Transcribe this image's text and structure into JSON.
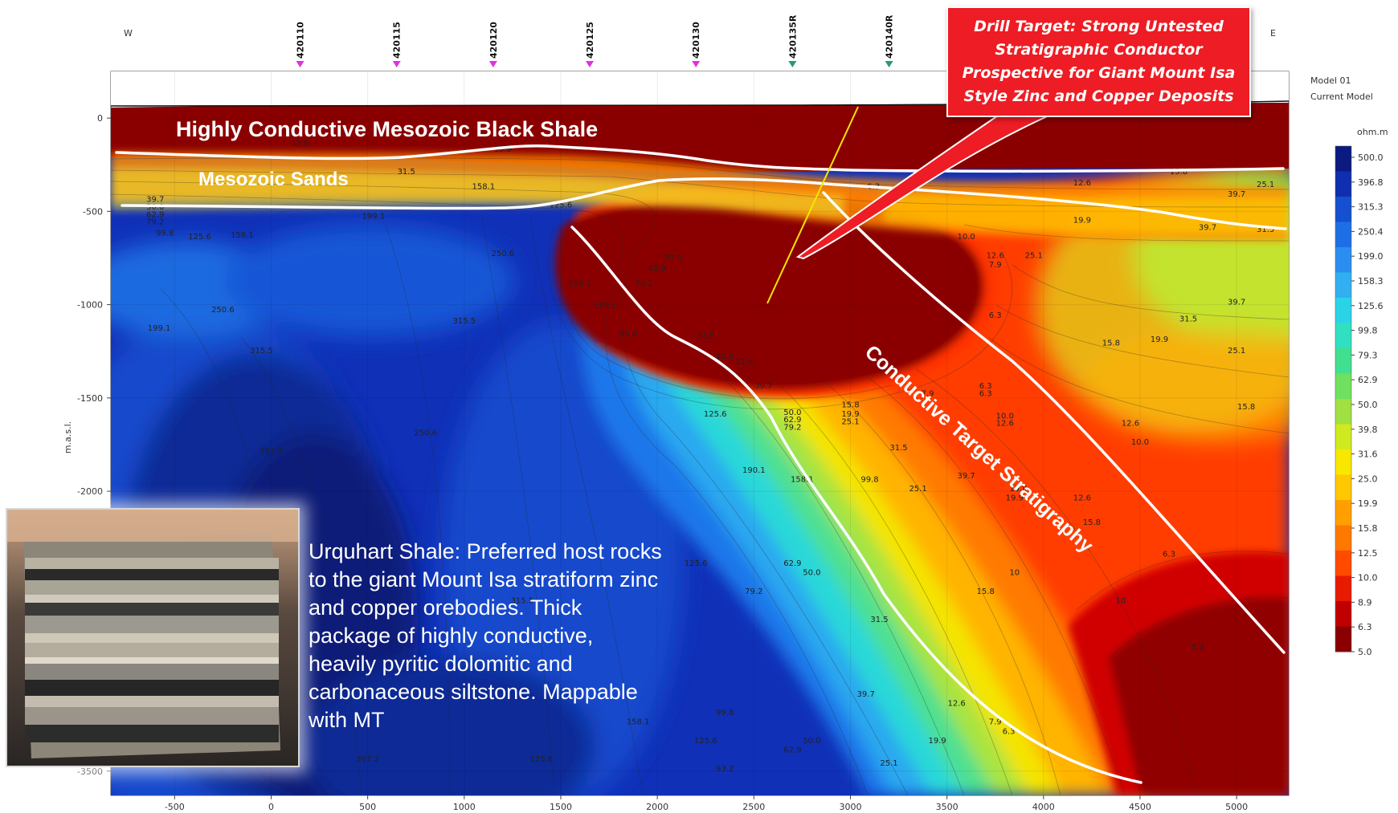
{
  "compass": {
    "west": "W",
    "east": "E"
  },
  "wells": [
    {
      "name": "420110",
      "x": 150,
      "color": "#e030e0"
    },
    {
      "name": "420115",
      "x": 650,
      "color": "#e030e0"
    },
    {
      "name": "420120",
      "x": 1150,
      "color": "#e030e0"
    },
    {
      "name": "420125",
      "x": 1650,
      "color": "#e030e0"
    },
    {
      "name": "420130",
      "x": 2200,
      "color": "#e030e0"
    },
    {
      "name": "420135R",
      "x": 2700,
      "color": "#2a9a6a"
    },
    {
      "name": "420140R",
      "x": 3200,
      "color": "#2a9a6a"
    }
  ],
  "labels": {
    "black_shale": "Highly Conductive Mesozoic Black Shale",
    "sands": "Mesozoic Sands",
    "target_strat": "Conductive Target Stratigraphy",
    "urquhart": "Urquhart Shale: Preferred host rocks to the giant Mount Isa stratiform zinc and copper orebodies. Thick package of highly conductive, heavily pyritic dolomitic and carbonaceous siltstone.  Mappable with MT"
  },
  "callout": {
    "lines": [
      "Drill Target: Strong Untested",
      "Stratigraphic Conductor",
      "Prospective for Giant Mount Isa",
      "Style Zinc and Copper Deposits"
    ],
    "color": "#ee1c24"
  },
  "model": {
    "line1": "Model 01",
    "line2": "Current Model",
    "unit": "ohm.m"
  },
  "colorbar": {
    "colors": [
      "#0a1a80",
      "#0f2fb0",
      "#1450d0",
      "#1e6ee6",
      "#2a8ef0",
      "#30b0f0",
      "#2ad4e6",
      "#30e0c0",
      "#40e090",
      "#70e060",
      "#a0e040",
      "#d0ea20",
      "#f8e800",
      "#ffc800",
      "#ffa000",
      "#ff7800",
      "#ff4a00",
      "#e81a00",
      "#c00000",
      "#8a0000"
    ],
    "labels": [
      "500.0",
      "396.8",
      "315.3",
      "250.4",
      "199.0",
      "158.3",
      "125.6",
      "99.8",
      "79.3",
      "62.9",
      "50.0",
      "39.8",
      "31.6",
      "25.0",
      "19.9",
      "15.8",
      "12.5",
      "10.0",
      "8.9",
      "6.3",
      "5.0"
    ]
  },
  "chart_data": {
    "type": "heatmap",
    "title": "",
    "xlabel": "",
    "ylabel": "m.a.s.l.",
    "x_ticks": [
      -500,
      0,
      500,
      1000,
      1500,
      2000,
      2500,
      3000,
      3500,
      4000,
      4500,
      5000
    ],
    "y_ticks": [
      0,
      -500,
      -1000,
      -1500,
      -2000,
      -3500
    ],
    "xlim": [
      -830,
      5270
    ],
    "ylim": [
      -3630,
      250
    ],
    "colorbar_unit": "ohm.m",
    "colorbar_values": [
      500.0,
      396.8,
      315.3,
      250.4,
      199.0,
      158.3,
      125.6,
      99.8,
      79.3,
      62.9,
      50.0,
      39.8,
      31.6,
      25.0,
      19.9,
      15.8,
      12.5,
      10.0,
      8.9,
      6.3,
      5.0
    ],
    "contour_labels": [
      {
        "x": 150,
        "y": -150,
        "v": "12.8"
      },
      {
        "x": 1200,
        "y": -180,
        "v": "15.9"
      },
      {
        "x": 700,
        "y": -300,
        "v": "31.5"
      },
      {
        "x": 1100,
        "y": -380,
        "v": "158.1"
      },
      {
        "x": 1500,
        "y": -480,
        "v": "125.6"
      },
      {
        "x": -600,
        "y": -450,
        "v": "39.7"
      },
      {
        "x": -600,
        "y": -490,
        "v": "50.0"
      },
      {
        "x": -600,
        "y": -530,
        "v": "62.9"
      },
      {
        "x": -600,
        "y": -570,
        "v": "79.2"
      },
      {
        "x": -550,
        "y": -630,
        "v": "99.8"
      },
      {
        "x": -370,
        "y": -650,
        "v": "125.6"
      },
      {
        "x": -150,
        "y": -640,
        "v": "158.1"
      },
      {
        "x": 530,
        "y": -540,
        "v": "199.1"
      },
      {
        "x": 1200,
        "y": -740,
        "v": "250.6"
      },
      {
        "x": -580,
        "y": -1140,
        "v": "199.1"
      },
      {
        "x": -250,
        "y": -1040,
        "v": "250.6"
      },
      {
        "x": -50,
        "y": -1260,
        "v": "315.5"
      },
      {
        "x": 1000,
        "y": -1100,
        "v": "315.5"
      },
      {
        "x": 1600,
        "y": -900,
        "v": "199.1"
      },
      {
        "x": 1730,
        "y": -1020,
        "v": "159.1"
      },
      {
        "x": 1850,
        "y": -1170,
        "v": "99.8"
      },
      {
        "x": 1930,
        "y": -900,
        "v": "79.2"
      },
      {
        "x": 2000,
        "y": -820,
        "v": "62.9"
      },
      {
        "x": 2080,
        "y": -760,
        "v": "50.0"
      },
      {
        "x": 2250,
        "y": -1180,
        "v": "31.5"
      },
      {
        "x": 2450,
        "y": -1320,
        "v": "12.6"
      },
      {
        "x": 2350,
        "y": -1290,
        "v": "10.0"
      },
      {
        "x": 2550,
        "y": -1450,
        "v": "39.7"
      },
      {
        "x": 2700,
        "y": -1590,
        "v": "50.0"
      },
      {
        "x": 2700,
        "y": -1630,
        "v": "62.9"
      },
      {
        "x": 2700,
        "y": -1670,
        "v": "79.2"
      },
      {
        "x": 2300,
        "y": -1600,
        "v": "125.6"
      },
      {
        "x": 2500,
        "y": -1900,
        "v": "190.1"
      },
      {
        "x": 2750,
        "y": -1950,
        "v": "158.1"
      },
      {
        "x": 3100,
        "y": -1950,
        "v": "99.8"
      },
      {
        "x": 3000,
        "y": -1550,
        "v": "15.8"
      },
      {
        "x": 3000,
        "y": -1600,
        "v": "19.9"
      },
      {
        "x": 3000,
        "y": -1640,
        "v": "25.1"
      },
      {
        "x": 3250,
        "y": -1780,
        "v": "31.5"
      },
      {
        "x": 3600,
        "y": -1930,
        "v": "39.7"
      },
      {
        "x": 3400,
        "y": -1490,
        "v": "7.9"
      },
      {
        "x": 3700,
        "y": -1490,
        "v": "6.3"
      },
      {
        "x": 3800,
        "y": -1610,
        "v": "10.0"
      },
      {
        "x": 3800,
        "y": -1650,
        "v": "12.6"
      },
      {
        "x": 4500,
        "y": -1750,
        "v": "10.0"
      },
      {
        "x": 5000,
        "y": -1000,
        "v": "39.7"
      },
      {
        "x": 4750,
        "y": -1090,
        "v": "31.5"
      },
      {
        "x": 5000,
        "y": -1260,
        "v": "25.1"
      },
      {
        "x": 4600,
        "y": -1200,
        "v": "19.9"
      },
      {
        "x": 5050,
        "y": -1560,
        "v": "15.8"
      },
      {
        "x": 4350,
        "y": -1220,
        "v": "15.8"
      },
      {
        "x": 3600,
        "y": -650,
        "v": "10.0"
      },
      {
        "x": 3750,
        "y": -750,
        "v": "12.6"
      },
      {
        "x": 3750,
        "y": -800,
        "v": "7.9"
      },
      {
        "x": 3950,
        "y": -750,
        "v": "25.1"
      },
      {
        "x": 3700,
        "y": -1450,
        "v": "6.3"
      },
      {
        "x": 4450,
        "y": -1650,
        "v": "12.6"
      },
      {
        "x": 3850,
        "y": -2050,
        "v": "19.9"
      },
      {
        "x": 4200,
        "y": -2050,
        "v": "12.6"
      },
      {
        "x": 4250,
        "y": -2180,
        "v": "15.8"
      },
      {
        "x": 3350,
        "y": -2000,
        "v": "25.1"
      },
      {
        "x": 3850,
        "y": -2450,
        "v": "10"
      },
      {
        "x": 3700,
        "y": -2550,
        "v": "15.8"
      },
      {
        "x": 3150,
        "y": -2700,
        "v": "31.5"
      },
      {
        "x": 3080,
        "y": -3100,
        "v": "39.7"
      },
      {
        "x": 3550,
        "y": -3150,
        "v": "12.6"
      },
      {
        "x": 3450,
        "y": -3350,
        "v": "19.9"
      },
      {
        "x": 3750,
        "y": -3250,
        "v": "7.9"
      },
      {
        "x": 3820,
        "y": -3300,
        "v": "6.3"
      },
      {
        "x": 2800,
        "y": -3350,
        "v": "50.0"
      },
      {
        "x": 2700,
        "y": -3400,
        "v": "62.9"
      },
      {
        "x": 3200,
        "y": -3470,
        "v": "25.1"
      },
      {
        "x": 2200,
        "y": -2400,
        "v": "125.6"
      },
      {
        "x": 2500,
        "y": -2550,
        "v": "79.2"
      },
      {
        "x": 2700,
        "y": -2400,
        "v": "62.9"
      },
      {
        "x": 2800,
        "y": -2450,
        "v": "50.0"
      },
      {
        "x": 2350,
        "y": -3200,
        "v": "99.8"
      },
      {
        "x": 2250,
        "y": -3350,
        "v": "125.6"
      },
      {
        "x": 1900,
        "y": -3250,
        "v": "158.1"
      },
      {
        "x": 1400,
        "y": -3450,
        "v": "125.6"
      },
      {
        "x": 4650,
        "y": -2350,
        "v": "6.3"
      },
      {
        "x": 4800,
        "y": -2850,
        "v": "5.2"
      },
      {
        "x": 4400,
        "y": -2600,
        "v": "10"
      },
      {
        "x": 3750,
        "y": -1070,
        "v": "6.3"
      },
      {
        "x": 3870,
        "y": -2000,
        "v": "15.8"
      },
      {
        "x": 1300,
        "y": -2600,
        "v": "315.5"
      },
      {
        "x": 800,
        "y": -1700,
        "v": "250.6"
      },
      {
        "x": -1,
        "y": -1800,
        "v": "397.7"
      },
      {
        "x": 500,
        "y": -3450,
        "v": "397.2"
      },
      {
        "x": 2350,
        "y": -3500,
        "v": "93.2"
      },
      {
        "x": 3120,
        "y": -380,
        "v": "6.3"
      },
      {
        "x": 4200,
        "y": -360,
        "v": "12.6"
      },
      {
        "x": 4700,
        "y": -300,
        "v": "15.8"
      },
      {
        "x": 5150,
        "y": -370,
        "v": "25.1"
      },
      {
        "x": 5000,
        "y": -420,
        "v": "39.7"
      },
      {
        "x": 5150,
        "y": -610,
        "v": "31.5"
      },
      {
        "x": 4200,
        "y": -560,
        "v": "19.9"
      },
      {
        "x": 4850,
        "y": -600,
        "v": "39.7"
      }
    ]
  }
}
